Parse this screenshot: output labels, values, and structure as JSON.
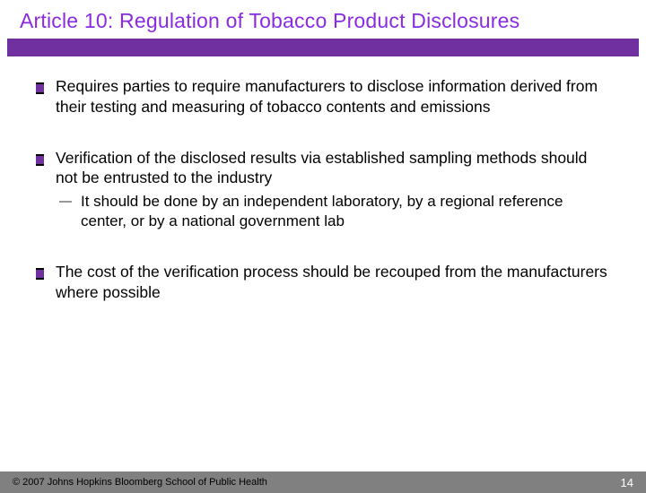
{
  "colors": {
    "title_text": "#8a2be2",
    "title_bar": "#7030a0",
    "bullet_fill": "#7030a0",
    "bullet_border": "#000000",
    "sub_bullet": "#999999",
    "footer_bg": "#808080",
    "footer_left_text": "#000000",
    "footer_right_text": "#ffffff",
    "body_text": "#000000",
    "background": "#ffffff"
  },
  "typography": {
    "title_fontsize": 23,
    "body_fontsize": 17.5,
    "sub_fontsize": 17,
    "footer_left_fontsize": 11,
    "footer_right_fontsize": 13,
    "font_family": "Trebuchet MS"
  },
  "title": "Article 10: Regulation of Tobacco Product Disclosures",
  "bullets": [
    {
      "text": "Requires parties to require manufacturers to disclose information derived from their testing and measuring of tobacco contents and emissions",
      "sub": []
    },
    {
      "text": "Verification of the disclosed results via established sampling methods should not be entrusted to the industry",
      "sub": [
        "It should be done by an independent laboratory, by a regional reference center, or by a national government lab"
      ]
    },
    {
      "text": "The cost of the verification process should be recouped from the manufacturers where possible",
      "sub": []
    }
  ],
  "footer": {
    "copyright": "© 2007 Johns Hopkins Bloomberg School of Public Health",
    "page_number": "14"
  }
}
